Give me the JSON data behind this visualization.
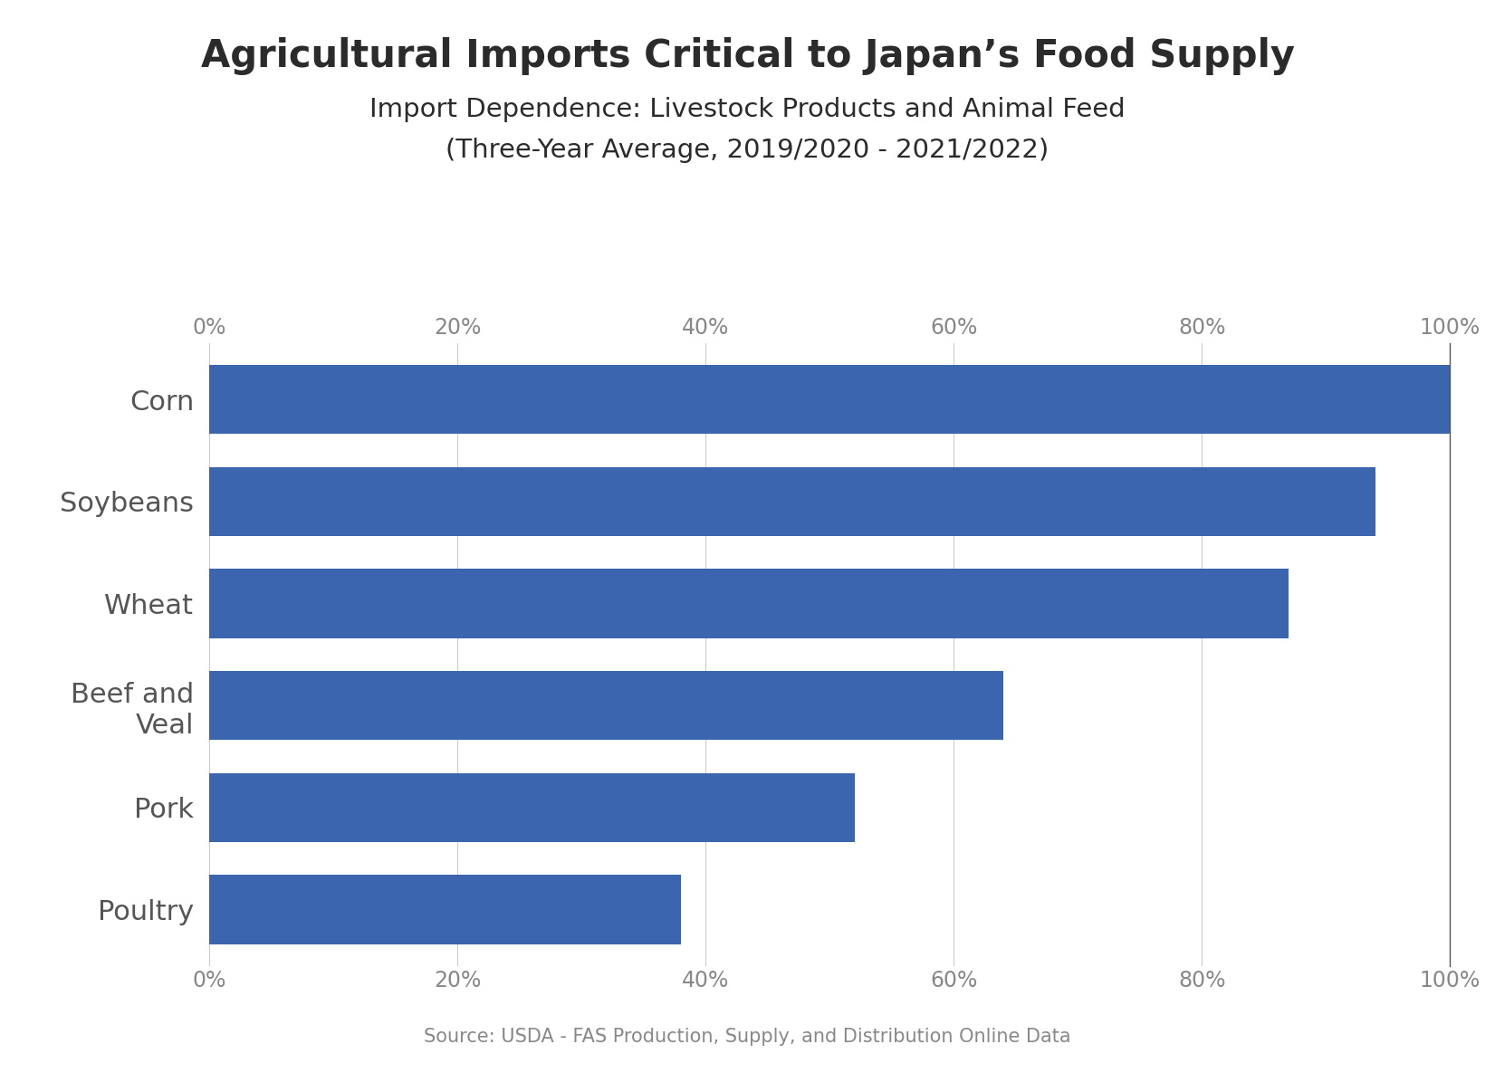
{
  "title": "Agricultural Imports Critical to Japan’s Food Supply",
  "subtitle_line1": "Import Dependence: Livestock Products and Animal Feed",
  "subtitle_line2": "(Three-Year Average, 2019/2020 - 2021/2022)",
  "source": "Source: USDA - FAS Production, Supply, and Distribution Online Data",
  "categories": [
    "Corn",
    "Soybeans",
    "Wheat",
    "Beef and\nVeal",
    "Pork",
    "Poultry"
  ],
  "values": [
    100,
    94,
    87,
    64,
    52,
    38
  ],
  "bar_color": "#3B65AE",
  "xlim": [
    0,
    100
  ],
  "xticks": [
    0,
    20,
    40,
    60,
    80,
    100
  ],
  "xtick_labels": [
    "0%",
    "20%",
    "40%",
    "60%",
    "80%",
    "100%"
  ],
  "background_color": "#ffffff",
  "title_fontsize": 30,
  "subtitle_fontsize": 21,
  "tick_label_fontsize": 17,
  "category_fontsize": 22,
  "source_fontsize": 15,
  "title_color": "#2b2b2b",
  "subtitle_color": "#2b2b2b",
  "tick_color": "#888888",
  "category_color": "#555555",
  "bar_height": 0.68
}
